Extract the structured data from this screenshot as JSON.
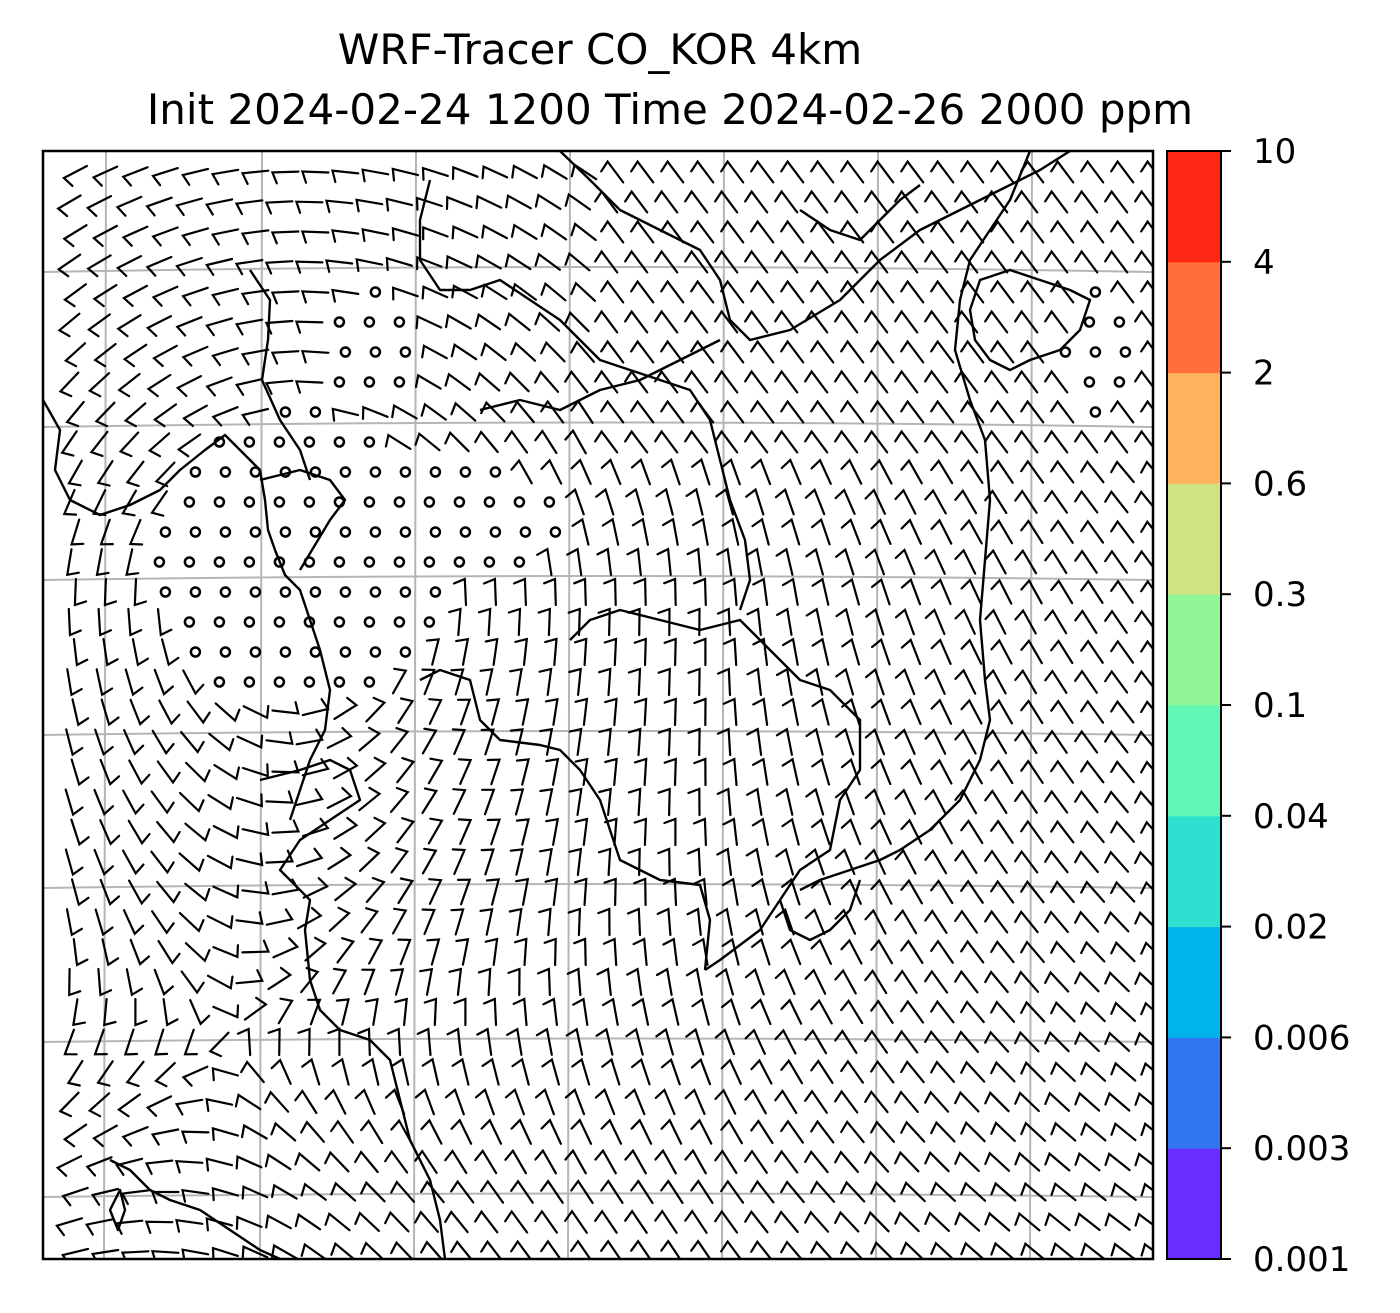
{
  "title": {
    "line1": "WRF-Tracer CO_KOR 4km",
    "line2": "Init 2024-02-24 1200 Time 2024-02-26 2000 ppm"
  },
  "colorbar": {
    "levels": [
      "0.001",
      "0.003",
      "0.006",
      "0.02",
      "0.04",
      "0.1",
      "0.3",
      "0.6",
      "2",
      "4",
      "10"
    ],
    "colors": [
      "#6a2dff",
      "#3275f0",
      "#00b3eb",
      "#2fe0d0",
      "#62f7b6",
      "#8ff595",
      "#d0e383",
      "#ffb25e",
      "#ff6e38",
      "#ff2713"
    ]
  },
  "map": {
    "wind_field": "wind barbs",
    "calm_marker": "calm circle",
    "coastline_color": "#000000",
    "grid_color": "#b5b5b5"
  }
}
